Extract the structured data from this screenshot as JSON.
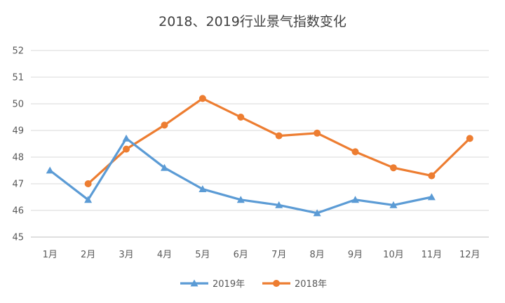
{
  "chart_data": {
    "type": "line",
    "title": "2018、2019行业景气指数变化",
    "xlabel": "",
    "ylabel": "",
    "categories": [
      "1月",
      "2月",
      "3月",
      "4月",
      "5月",
      "6月",
      "7月",
      "8月",
      "9月",
      "10月",
      "11月",
      "12月"
    ],
    "ylim": [
      45,
      52
    ],
    "yticks": [
      45,
      46,
      47,
      48,
      49,
      50,
      51,
      52
    ],
    "grid": true,
    "legend_position": "bottom",
    "series": [
      {
        "name": "2019年",
        "color": "#5b9bd5",
        "marker": "triangle",
        "values": [
          47.5,
          46.4,
          48.7,
          47.6,
          46.8,
          46.4,
          46.2,
          45.9,
          46.4,
          46.2,
          46.5,
          null
        ]
      },
      {
        "name": "2018年",
        "color": "#ed7d31",
        "marker": "circle",
        "values": [
          null,
          47.0,
          48.3,
          49.2,
          50.2,
          49.5,
          48.8,
          48.9,
          48.2,
          47.6,
          47.3,
          48.7
        ]
      }
    ]
  }
}
